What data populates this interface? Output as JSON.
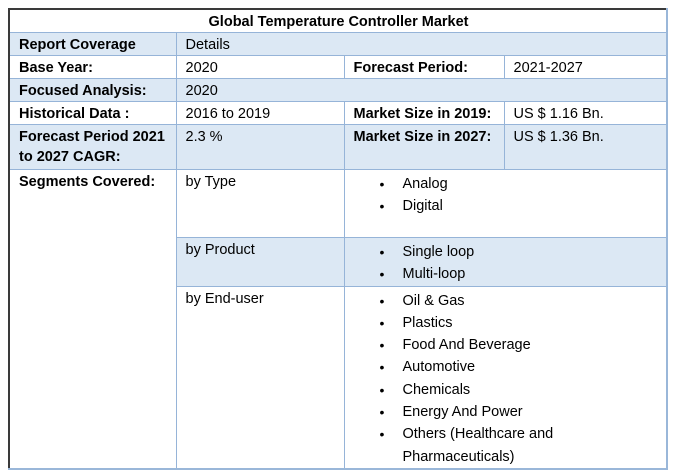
{
  "title": "Global Temperature Controller Market",
  "colors": {
    "row_fill_blue": "#dce8f4",
    "inner_border": "#96b4d8",
    "outer_border_top_left": "#3a3a3a",
    "outer_border_bottom_right": "#9ab7d9",
    "text": "#000000"
  },
  "fields": {
    "report_coverage": {
      "label": "Report Coverage",
      "value": "Details"
    },
    "base_year": {
      "label": "Base Year:",
      "value": "2020"
    },
    "forecast_period": {
      "label": "Forecast Period:",
      "value": "2021-2027"
    },
    "focused_analysis": {
      "label": "Focused Analysis:",
      "value": "2020"
    },
    "historical_data": {
      "label": "Historical Data :",
      "value": "2016 to 2019"
    },
    "market_size_2019": {
      "label": "Market Size in 2019:",
      "value": "US $ 1.16 Bn."
    },
    "cagr": {
      "label": "Forecast Period 2021 to 2027 CAGR:",
      "value": "2.3 %"
    },
    "market_size_2027": {
      "label": "Market Size in 2027:",
      "value": "US $ 1.36 Bn."
    },
    "segments_covered": {
      "label": "Segments Covered:"
    }
  },
  "segments": [
    {
      "group": "by Type",
      "items": [
        "Analog",
        "Digital"
      ]
    },
    {
      "group": "by Product",
      "items": [
        "Single loop",
        "Multi-loop"
      ]
    },
    {
      "group": "by End-user",
      "items": [
        "Oil & Gas",
        "Plastics",
        "Food And Beverage",
        "Automotive",
        "Chemicals",
        "Energy And Power",
        "Others (Healthcare and Pharmaceuticals)"
      ]
    }
  ]
}
